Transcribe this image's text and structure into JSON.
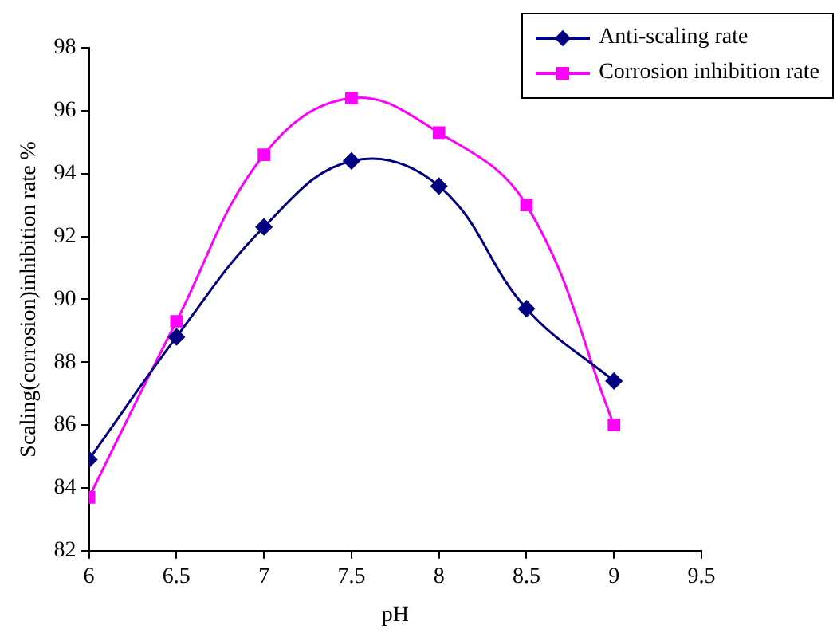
{
  "chart_data": {
    "type": "line",
    "xlabel": "pH",
    "ylabel": "Scaling(corrosion)inhibition rate %",
    "x": [
      6,
      6.5,
      7,
      7.5,
      8,
      8.5,
      9
    ],
    "series": [
      {
        "name": "Anti-scaling rate",
        "color": "#000080",
        "marker": "diamond",
        "values": [
          84.9,
          88.8,
          92.3,
          94.4,
          93.6,
          89.7,
          87.4
        ]
      },
      {
        "name": "Corrosion inhibition rate",
        "color": "#ff00ff",
        "marker": "square",
        "values": [
          83.7,
          89.3,
          94.6,
          96.4,
          95.3,
          93.0,
          86.0
        ]
      }
    ],
    "xlim": [
      6,
      9.5
    ],
    "xticks": [
      6,
      6.5,
      7,
      7.5,
      8,
      8.5,
      9,
      9.5
    ],
    "ylim": [
      82,
      98
    ],
    "yticks": [
      82,
      84,
      86,
      88,
      90,
      92,
      94,
      96,
      98
    ],
    "grid": false,
    "legend": "top right",
    "line_style": "solid"
  }
}
